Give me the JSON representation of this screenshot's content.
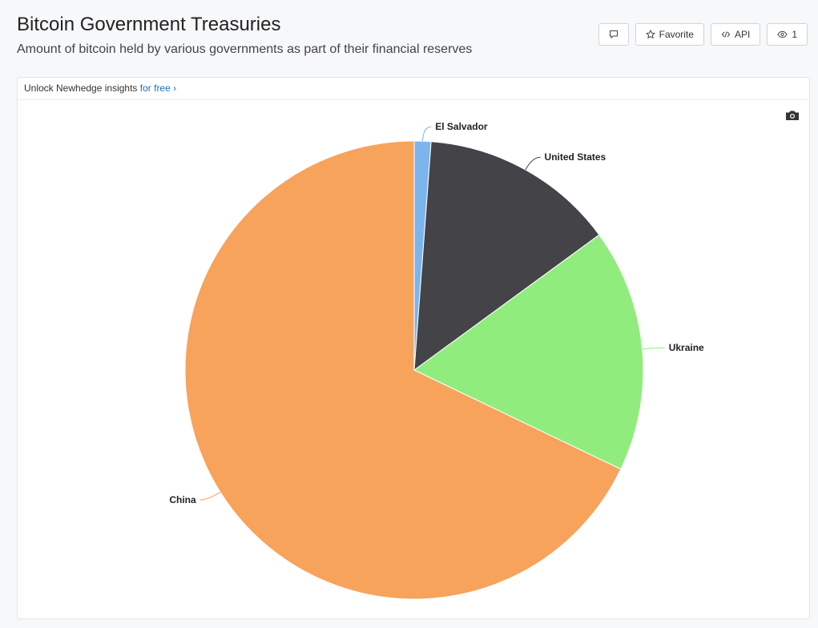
{
  "header": {
    "title": "Bitcoin Government Treasuries",
    "subtitle": "Amount of bitcoin held by various governments as part of their financial reserves"
  },
  "toolbar": {
    "comment_icon": "comment-icon",
    "favorite_label": "Favorite",
    "api_label": "API",
    "views_count": "1"
  },
  "card": {
    "insights_text": "Unlock Newhedge insights",
    "insights_link": "for free",
    "insights_chevron": "›"
  },
  "chart_data": {
    "type": "pie",
    "title": "",
    "categories": [
      "El Salvador",
      "United States",
      "Ukraine",
      "China"
    ],
    "values": [
      5900,
      69000,
      86000,
      340000
    ],
    "colors": [
      "#7cb5ec",
      "#434348",
      "#90ed7d",
      "#f7a35c"
    ]
  }
}
